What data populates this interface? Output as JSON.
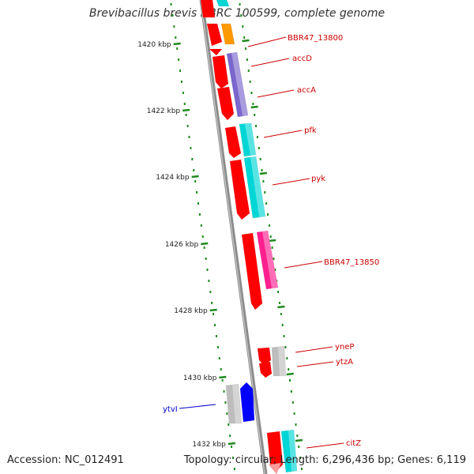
{
  "title": "Brevibacillus brevis NBRC 100599, complete genome",
  "footer": {
    "accession_label": "Accession:",
    "accession": "NC_012491",
    "topology_label": "Topology:",
    "topology": "circular;",
    "length_label": "Length:",
    "length": "6,296,436 bp;",
    "genes_label": "Genes:",
    "genes": "6,119"
  },
  "colors": {
    "backbone": "#8c8c8c",
    "tick": "#1e8a1e",
    "label_red": "#cc0000",
    "label_blue": "#0000cc",
    "gene_red": "#ff0000",
    "gene_orange": "#ff9900",
    "gene_purple": "#7a66cc",
    "gene_cyan": "#00d6d6",
    "gene_pink": "#ff1f8f",
    "gene_gray": "#bdbdbd",
    "gene_blue": "#0000ff"
  },
  "scale": {
    "ticks": [
      {
        "label": "1420 kbp",
        "kbp": 1420
      },
      {
        "label": "1422 kbp",
        "kbp": 1422
      },
      {
        "label": "1424 kbp",
        "kbp": 1424
      },
      {
        "label": "1426 kbp",
        "kbp": 1426
      },
      {
        "label": "1428 kbp",
        "kbp": 1428
      },
      {
        "label": "1430 kbp",
        "kbp": 1430
      },
      {
        "label": "1432 kbp",
        "kbp": 1432
      }
    ]
  },
  "gene_labels": [
    {
      "name": "BBR47_13800",
      "color": "red"
    },
    {
      "name": "accD",
      "color": "red"
    },
    {
      "name": "accA",
      "color": "red"
    },
    {
      "name": "pfk",
      "color": "red"
    },
    {
      "name": "pyk",
      "color": "red"
    },
    {
      "name": "BBR47_13850",
      "color": "red"
    },
    {
      "name": "yneP",
      "color": "red"
    },
    {
      "name": "ytzA",
      "color": "red"
    },
    {
      "name": "ytvI",
      "color": "blue"
    },
    {
      "name": "citZ",
      "color": "red"
    }
  ]
}
